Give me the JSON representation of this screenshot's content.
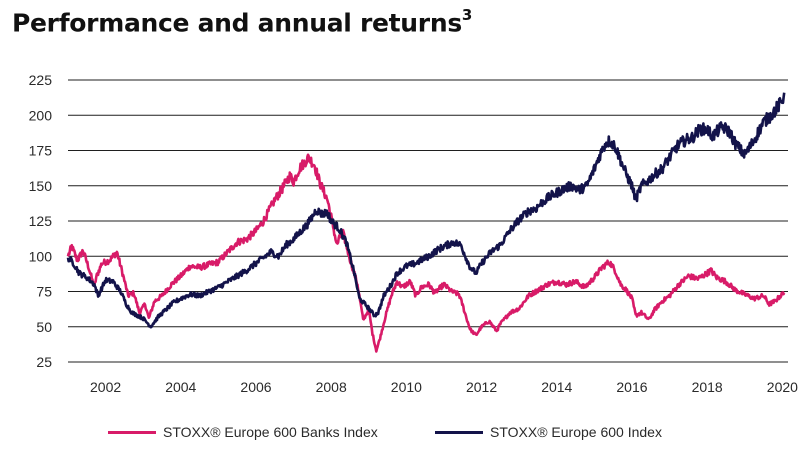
{
  "page": {
    "title": "Performance and annual returns",
    "title_superscript": "3"
  },
  "chart_data": {
    "type": "line",
    "title": "Performance and annual returns",
    "xlabel": "",
    "ylabel": "",
    "xlim": [
      2001.0,
      2020.15
    ],
    "ylim": [
      25,
      225
    ],
    "yticks": [
      25,
      50,
      75,
      100,
      125,
      150,
      175,
      200,
      225
    ],
    "ytick_labels": [
      "25",
      "50",
      "75",
      "100",
      "125",
      "150",
      "175",
      "200",
      "225"
    ],
    "xticks": [
      2002,
      2004,
      2006,
      2008,
      2010,
      2012,
      2014,
      2016,
      2018,
      2020
    ],
    "xtick_labels": [
      "2002",
      "2004",
      "2006",
      "2008",
      "2010",
      "2012",
      "2014",
      "2016",
      "2018",
      "2020"
    ],
    "grid": "horizontal",
    "legend_position": "bottom",
    "series": [
      {
        "name": "STOXX® Europe 600 Banks Index",
        "color": "#d81b68",
        "x": [
          2001.0,
          2001.1,
          2001.25,
          2001.4,
          2001.55,
          2001.7,
          2001.75,
          2001.9,
          2002.1,
          2002.3,
          2002.45,
          2002.6,
          2002.75,
          2002.9,
          2003.05,
          2003.15,
          2003.3,
          2003.5,
          2003.75,
          2004.0,
          2004.25,
          2004.5,
          2004.75,
          2005.0,
          2005.25,
          2005.5,
          2005.75,
          2006.0,
          2006.2,
          2006.4,
          2006.5,
          2006.7,
          2006.9,
          2007.0,
          2007.15,
          2007.3,
          2007.4,
          2007.55,
          2007.7,
          2007.9,
          2008.0,
          2008.15,
          2008.3,
          2008.5,
          2008.7,
          2008.85,
          2009.0,
          2009.1,
          2009.2,
          2009.3,
          2009.45,
          2009.6,
          2009.75,
          2009.9,
          2010.1,
          2010.25,
          2010.4,
          2010.6,
          2010.75,
          2011.0,
          2011.2,
          2011.4,
          2011.5,
          2011.6,
          2011.7,
          2011.85,
          2012.0,
          2012.2,
          2012.4,
          2012.5,
          2012.75,
          2013.0,
          2013.25,
          2013.5,
          2013.75,
          2014.0,
          2014.25,
          2014.5,
          2014.75,
          2015.0,
          2015.2,
          2015.4,
          2015.55,
          2015.7,
          2015.85,
          2016.0,
          2016.1,
          2016.25,
          2016.45,
          2016.6,
          2016.8,
          2017.0,
          2017.25,
          2017.5,
          2017.75,
          2018.0,
          2018.1,
          2018.25,
          2018.5,
          2018.75,
          2019.0,
          2019.25,
          2019.5,
          2019.65,
          2019.8,
          2019.95,
          2020.05
        ],
        "values": [
          100,
          107,
          97,
          104,
          92,
          78,
          85,
          95,
          97,
          103,
          88,
          72,
          74,
          60,
          66,
          56,
          68,
          72,
          80,
          86,
          93,
          92,
          94,
          96,
          103,
          110,
          112,
          118,
          125,
          135,
          140,
          148,
          157,
          153,
          162,
          167,
          170,
          165,
          152,
          140,
          128,
          108,
          118,
          98,
          80,
          55,
          62,
          45,
          33,
          42,
          58,
          72,
          82,
          78,
          82,
          72,
          78,
          80,
          74,
          80,
          75,
          73,
          65,
          56,
          48,
          44,
          50,
          54,
          47,
          52,
          60,
          63,
          72,
          76,
          80,
          82,
          80,
          82,
          78,
          85,
          92,
          96,
          90,
          80,
          76,
          70,
          58,
          60,
          55,
          62,
          68,
          72,
          80,
          86,
          84,
          88,
          90,
          85,
          82,
          76,
          73,
          70,
          72,
          66,
          68,
          72,
          74
        ]
      },
      {
        "name": "STOXX® Europe 600 Index",
        "color": "#13134a",
        "x": [
          2001.0,
          2001.15,
          2001.3,
          2001.5,
          2001.7,
          2001.8,
          2002.0,
          2002.2,
          2002.4,
          2002.55,
          2002.7,
          2002.85,
          2003.0,
          2003.2,
          2003.4,
          2003.6,
          2003.8,
          2004.0,
          2004.25,
          2004.5,
          2004.75,
          2005.0,
          2005.25,
          2005.5,
          2005.75,
          2006.0,
          2006.25,
          2006.4,
          2006.6,
          2006.8,
          2007.0,
          2007.2,
          2007.35,
          2007.5,
          2007.6,
          2007.75,
          2007.9,
          2008.0,
          2008.2,
          2008.4,
          2008.6,
          2008.75,
          2008.9,
          2009.0,
          2009.15,
          2009.25,
          2009.4,
          2009.6,
          2009.75,
          2010.0,
          2010.25,
          2010.45,
          2010.6,
          2010.8,
          2011.0,
          2011.25,
          2011.45,
          2011.6,
          2011.7,
          2011.85,
          2012.0,
          2012.25,
          2012.5,
          2012.75,
          2013.0,
          2013.25,
          2013.45,
          2013.6,
          2013.8,
          2014.0,
          2014.2,
          2014.4,
          2014.6,
          2014.8,
          2015.0,
          2015.15,
          2015.3,
          2015.4,
          2015.55,
          2015.7,
          2015.85,
          2016.0,
          2016.1,
          2016.25,
          2016.45,
          2016.6,
          2016.8,
          2017.0,
          2017.2,
          2017.4,
          2017.6,
          2017.8,
          2018.0,
          2018.15,
          2018.25,
          2018.4,
          2018.6,
          2018.75,
          2018.9,
          2019.0,
          2019.15,
          2019.3,
          2019.5,
          2019.7,
          2019.85,
          2020.0,
          2020.05
        ],
        "values": [
          99,
          95,
          88,
          85,
          80,
          72,
          83,
          82,
          75,
          66,
          60,
          58,
          56,
          50,
          57,
          62,
          67,
          70,
          73,
          72,
          75,
          78,
          82,
          86,
          90,
          95,
          100,
          103,
          100,
          108,
          112,
          118,
          122,
          128,
          133,
          130,
          131,
          125,
          120,
          110,
          90,
          70,
          66,
          63,
          58,
          60,
          72,
          80,
          88,
          93,
          95,
          98,
          100,
          104,
          107,
          110,
          108,
          98,
          92,
          88,
          95,
          103,
          108,
          118,
          126,
          132,
          134,
          138,
          142,
          145,
          148,
          150,
          147,
          150,
          162,
          172,
          180,
          182,
          178,
          168,
          158,
          150,
          140,
          150,
          154,
          158,
          162,
          170,
          178,
          182,
          184,
          190,
          190,
          185,
          188,
          192,
          188,
          180,
          175,
          172,
          178,
          185,
          195,
          200,
          205,
          210,
          216
        ]
      }
    ]
  }
}
